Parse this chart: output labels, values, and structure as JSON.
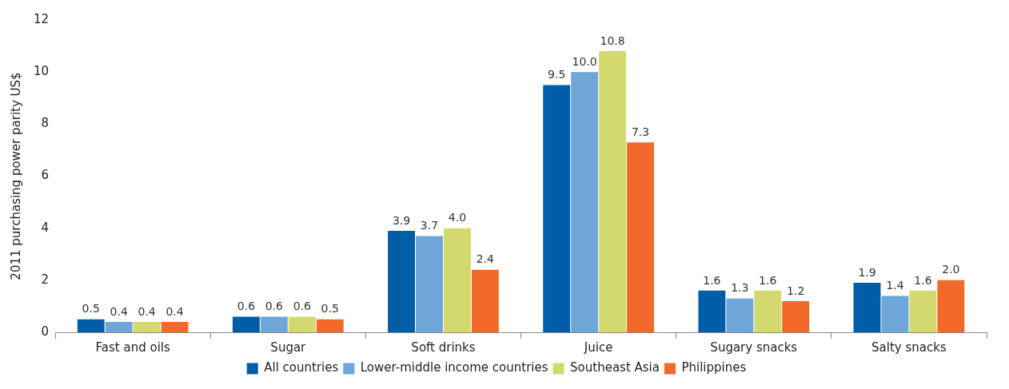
{
  "chart_data": {
    "type": "bar",
    "ylabel": "2011 purchasing power parity US$",
    "categories": [
      "Fast and oils",
      "Sugar",
      "Soft drinks",
      "Juice",
      "Sugary snacks",
      "Salty snacks"
    ],
    "series": [
      {
        "name": "All countries",
        "color": "#005ea8",
        "values": [
          0.5,
          0.6,
          3.9,
          9.5,
          1.6,
          1.9
        ],
        "value_labels": [
          "0.5",
          "0.6",
          "3.9",
          "9.5",
          "1.6",
          "1.9"
        ]
      },
      {
        "name": "Lower-middle income countries",
        "color": "#6fa6d9",
        "values": [
          0.4,
          0.6,
          3.7,
          10.0,
          1.3,
          1.4
        ],
        "value_labels": [
          "0.4",
          "0.6",
          "3.7",
          "10.0",
          "1.3",
          "1.4"
        ]
      },
      {
        "name": "Southeast Asia",
        "color": "#d3d96f",
        "values": [
          0.4,
          0.6,
          4.0,
          10.8,
          1.6,
          1.6
        ],
        "value_labels": [
          "0.4",
          "0.6",
          "4.0",
          "10.8",
          "1.6",
          "1.6"
        ]
      },
      {
        "name": "Philippines",
        "color": "#f26a2a",
        "values": [
          0.4,
          0.5,
          2.4,
          7.3,
          1.2,
          2.0
        ],
        "value_labels": [
          "0.4",
          "0.5",
          "2.4",
          "7.3",
          "1.2",
          "2.0"
        ]
      }
    ],
    "ylim": [
      0,
      12
    ],
    "yticks": [
      0,
      2,
      4,
      6,
      8,
      10,
      12
    ],
    "grid": false,
    "legend": "bottom"
  }
}
